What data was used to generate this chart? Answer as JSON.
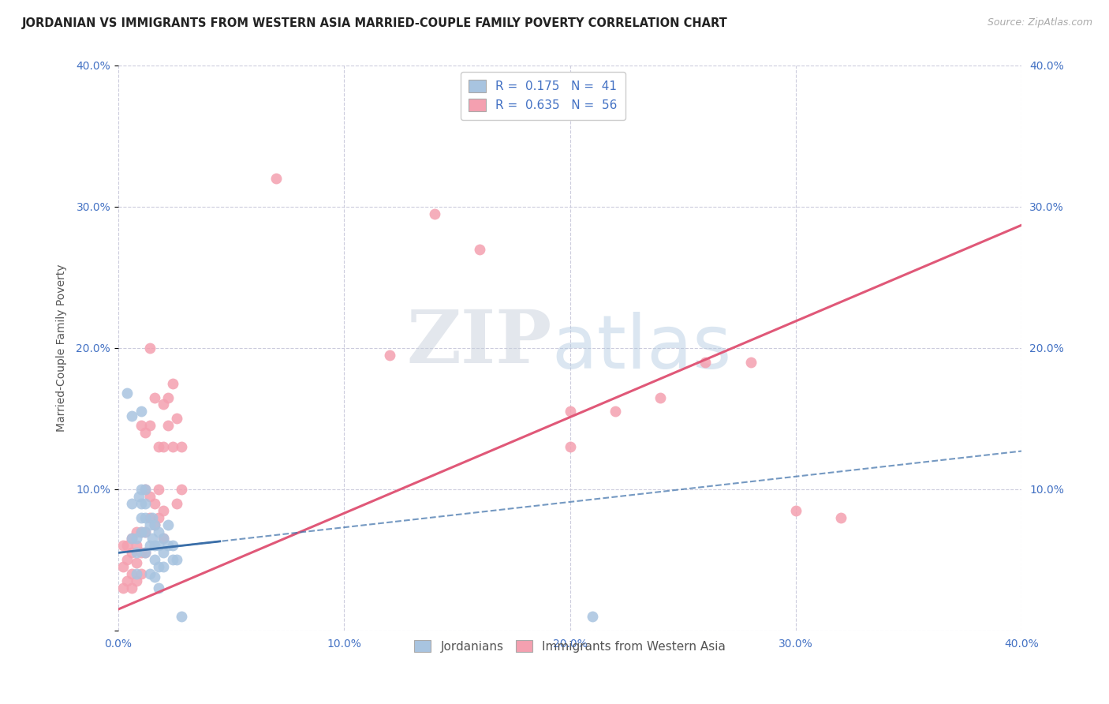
{
  "title": "JORDANIAN VS IMMIGRANTS FROM WESTERN ASIA MARRIED-COUPLE FAMILY POVERTY CORRELATION CHART",
  "source": "Source: ZipAtlas.com",
  "ylabel": "Married-Couple Family Poverty",
  "xlim": [
    0.0,
    0.4
  ],
  "ylim": [
    0.0,
    0.4
  ],
  "xticks": [
    0.0,
    0.1,
    0.2,
    0.3,
    0.4
  ],
  "yticks": [
    0.0,
    0.1,
    0.2,
    0.3,
    0.4
  ],
  "xtick_labels": [
    "0.0%",
    "10.0%",
    "20.0%",
    "30.0%",
    "40.0%"
  ],
  "ytick_labels": [
    "",
    "10.0%",
    "20.0%",
    "30.0%",
    "40.0%"
  ],
  "legend_R1": "0.175",
  "legend_N1": "41",
  "legend_R2": "0.635",
  "legend_N2": "56",
  "blue_color": "#a8c4e0",
  "blue_line_color": "#3a6ea8",
  "pink_color": "#f4a0b0",
  "pink_line_color": "#e05878",
  "blue_scatter": [
    [
      0.004,
      0.168
    ],
    [
      0.006,
      0.152
    ],
    [
      0.006,
      0.09
    ],
    [
      0.006,
      0.065
    ],
    [
      0.008,
      0.065
    ],
    [
      0.008,
      0.055
    ],
    [
      0.008,
      0.04
    ],
    [
      0.009,
      0.095
    ],
    [
      0.01,
      0.155
    ],
    [
      0.01,
      0.1
    ],
    [
      0.01,
      0.09
    ],
    [
      0.01,
      0.08
    ],
    [
      0.01,
      0.07
    ],
    [
      0.012,
      0.1
    ],
    [
      0.012,
      0.09
    ],
    [
      0.012,
      0.08
    ],
    [
      0.012,
      0.07
    ],
    [
      0.012,
      0.055
    ],
    [
      0.014,
      0.075
    ],
    [
      0.014,
      0.06
    ],
    [
      0.014,
      0.04
    ],
    [
      0.015,
      0.08
    ],
    [
      0.015,
      0.065
    ],
    [
      0.016,
      0.075
    ],
    [
      0.016,
      0.06
    ],
    [
      0.016,
      0.05
    ],
    [
      0.016,
      0.038
    ],
    [
      0.018,
      0.07
    ],
    [
      0.018,
      0.06
    ],
    [
      0.018,
      0.045
    ],
    [
      0.018,
      0.03
    ],
    [
      0.02,
      0.065
    ],
    [
      0.02,
      0.055
    ],
    [
      0.02,
      0.045
    ],
    [
      0.022,
      0.075
    ],
    [
      0.022,
      0.06
    ],
    [
      0.024,
      0.06
    ],
    [
      0.024,
      0.05
    ],
    [
      0.026,
      0.05
    ],
    [
      0.028,
      0.01
    ],
    [
      0.21,
      0.01
    ]
  ],
  "pink_scatter": [
    [
      0.002,
      0.06
    ],
    [
      0.002,
      0.045
    ],
    [
      0.002,
      0.03
    ],
    [
      0.004,
      0.06
    ],
    [
      0.004,
      0.05
    ],
    [
      0.004,
      0.035
    ],
    [
      0.006,
      0.065
    ],
    [
      0.006,
      0.055
    ],
    [
      0.006,
      0.04
    ],
    [
      0.006,
      0.03
    ],
    [
      0.008,
      0.07
    ],
    [
      0.008,
      0.06
    ],
    [
      0.008,
      0.048
    ],
    [
      0.008,
      0.035
    ],
    [
      0.01,
      0.145
    ],
    [
      0.01,
      0.07
    ],
    [
      0.01,
      0.055
    ],
    [
      0.01,
      0.04
    ],
    [
      0.012,
      0.14
    ],
    [
      0.012,
      0.1
    ],
    [
      0.012,
      0.07
    ],
    [
      0.012,
      0.055
    ],
    [
      0.014,
      0.2
    ],
    [
      0.014,
      0.145
    ],
    [
      0.014,
      0.095
    ],
    [
      0.014,
      0.08
    ],
    [
      0.016,
      0.165
    ],
    [
      0.016,
      0.09
    ],
    [
      0.016,
      0.075
    ],
    [
      0.018,
      0.13
    ],
    [
      0.018,
      0.1
    ],
    [
      0.018,
      0.08
    ],
    [
      0.02,
      0.16
    ],
    [
      0.02,
      0.13
    ],
    [
      0.02,
      0.085
    ],
    [
      0.02,
      0.065
    ],
    [
      0.022,
      0.165
    ],
    [
      0.022,
      0.145
    ],
    [
      0.024,
      0.175
    ],
    [
      0.024,
      0.13
    ],
    [
      0.026,
      0.15
    ],
    [
      0.026,
      0.09
    ],
    [
      0.028,
      0.13
    ],
    [
      0.028,
      0.1
    ],
    [
      0.07,
      0.32
    ],
    [
      0.12,
      0.195
    ],
    [
      0.14,
      0.295
    ],
    [
      0.16,
      0.27
    ],
    [
      0.2,
      0.155
    ],
    [
      0.2,
      0.13
    ],
    [
      0.22,
      0.155
    ],
    [
      0.24,
      0.165
    ],
    [
      0.26,
      0.19
    ],
    [
      0.28,
      0.19
    ],
    [
      0.3,
      0.085
    ],
    [
      0.32,
      0.08
    ]
  ],
  "watermark_zip": "ZIP",
  "watermark_atlas": "atlas",
  "background_color": "#ffffff",
  "grid_color": "#ccccdd",
  "blue_line_x_end": 0.045,
  "pink_line_slope": 0.68,
  "pink_line_intercept": 0.015,
  "blue_line_slope": 0.18,
  "blue_line_intercept": 0.055
}
